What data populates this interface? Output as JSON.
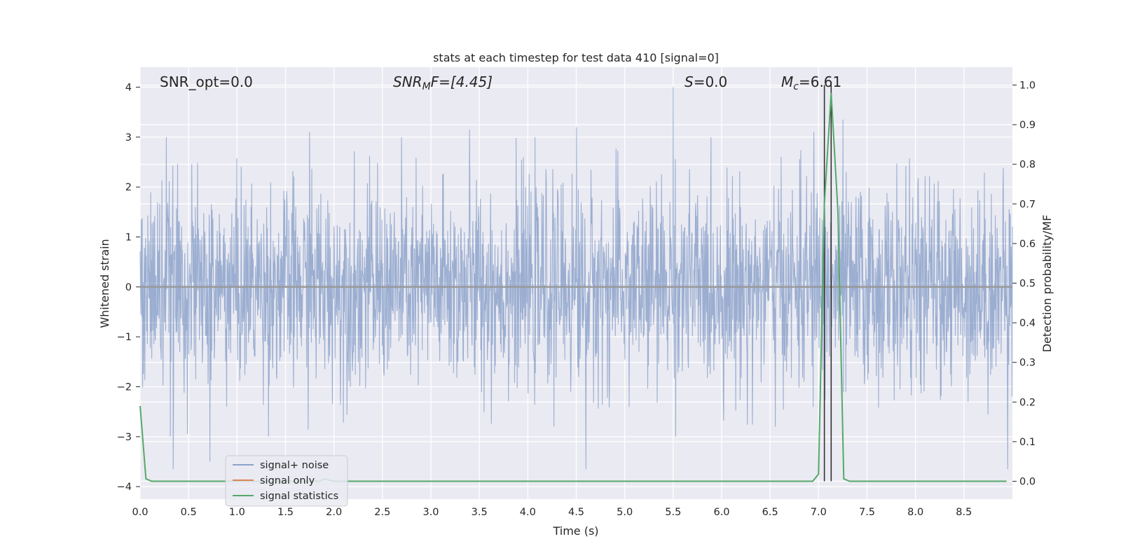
{
  "chart_data": {
    "type": "line",
    "title": "stats at each timestep for test data 410 [signal=0]",
    "xlabel": "Time (s)",
    "ylabel": "Whitened strain",
    "ylabel_right": "Detection probability/MF",
    "xlim": [
      0.0,
      9.0
    ],
    "ylim": [
      -4.25,
      4.4
    ],
    "ylim_right": [
      -0.045,
      1.045
    ],
    "x_ticks": [
      "0.0",
      "0.5",
      "1.0",
      "1.5",
      "2.0",
      "2.5",
      "3.0",
      "3.5",
      "4.0",
      "4.5",
      "5.0",
      "5.5",
      "6.0",
      "6.5",
      "7.0",
      "7.5",
      "8.0",
      "8.5"
    ],
    "y_ticks": [
      "−4",
      "−3",
      "−2",
      "−1",
      "0",
      "1",
      "2",
      "3",
      "4"
    ],
    "y_ticks_right": [
      "0.0",
      "0.1",
      "0.2",
      "0.3",
      "0.4",
      "0.5",
      "0.6",
      "0.7",
      "0.8",
      "0.9",
      "1.0"
    ],
    "annotations": {
      "snr_opt": "SNR_opt=0.0",
      "snr_mf_base": "SNR",
      "snr_mf_sub": "M",
      "snr_mf_rest": "F=[4.45]",
      "s_base": "S",
      "s_rest": "=0.0",
      "mc_base": "M",
      "mc_sub": "c",
      "mc_rest": "=6.61"
    },
    "legend": {
      "placement": "lower-left",
      "entries": [
        "signal+ noise",
        "signal only",
        "signal statistics"
      ]
    },
    "colors": {
      "signal_noise": "#4c72b0",
      "signal_only": "#dd8452",
      "signal_statistics": "#55a868",
      "vlines": "#333333",
      "background": "#eaeaf2"
    },
    "series": [
      {
        "name": "signal+ noise",
        "axis": "left",
        "x_range": [
          0.0,
          9.0
        ],
        "description_values": "whitened strain noise samples, roughly symmetric, envelope about ±2.5 with peaks near 4.0 at t≈5.5 and −3.65 at t≈4.6",
        "peaks": [
          {
            "x": 0.27,
            "y": 3.0
          },
          {
            "x": 0.34,
            "y": -3.65
          },
          {
            "x": 0.72,
            "y": -3.5
          },
          {
            "x": 1.75,
            "y": 3.1
          },
          {
            "x": 3.4,
            "y": 3.15
          },
          {
            "x": 4.5,
            "y": 3.2
          },
          {
            "x": 4.6,
            "y": -3.65
          },
          {
            "x": 5.5,
            "y": 4.0
          },
          {
            "x": 6.95,
            "y": 3.1
          },
          {
            "x": 7.25,
            "y": 3.35
          },
          {
            "x": 8.95,
            "y": -3.65
          }
        ]
      },
      {
        "name": "signal only",
        "axis": "left",
        "x": [
          0.0,
          9.0
        ],
        "y": [
          0.0,
          0.0
        ]
      },
      {
        "name": "signal statistics",
        "axis": "right",
        "x": [
          0.0,
          0.06,
          0.12,
          0.5,
          1.0,
          1.5,
          1.85,
          1.9,
          2.0,
          3.0,
          4.0,
          5.0,
          6.0,
          6.94,
          7.0,
          7.06,
          7.13,
          7.2,
          7.26,
          7.32,
          8.0,
          8.94
        ],
        "y": [
          0.19,
          0.006,
          0.0,
          0.0,
          0.0,
          0.0,
          0.0,
          0.006,
          0.0,
          0.0,
          0.0,
          0.0,
          0.0,
          0.0,
          0.018,
          0.7,
          0.98,
          0.68,
          0.006,
          0.0,
          0.0,
          0.0
        ]
      }
    ],
    "vlines": [
      7.06,
      7.13
    ]
  }
}
